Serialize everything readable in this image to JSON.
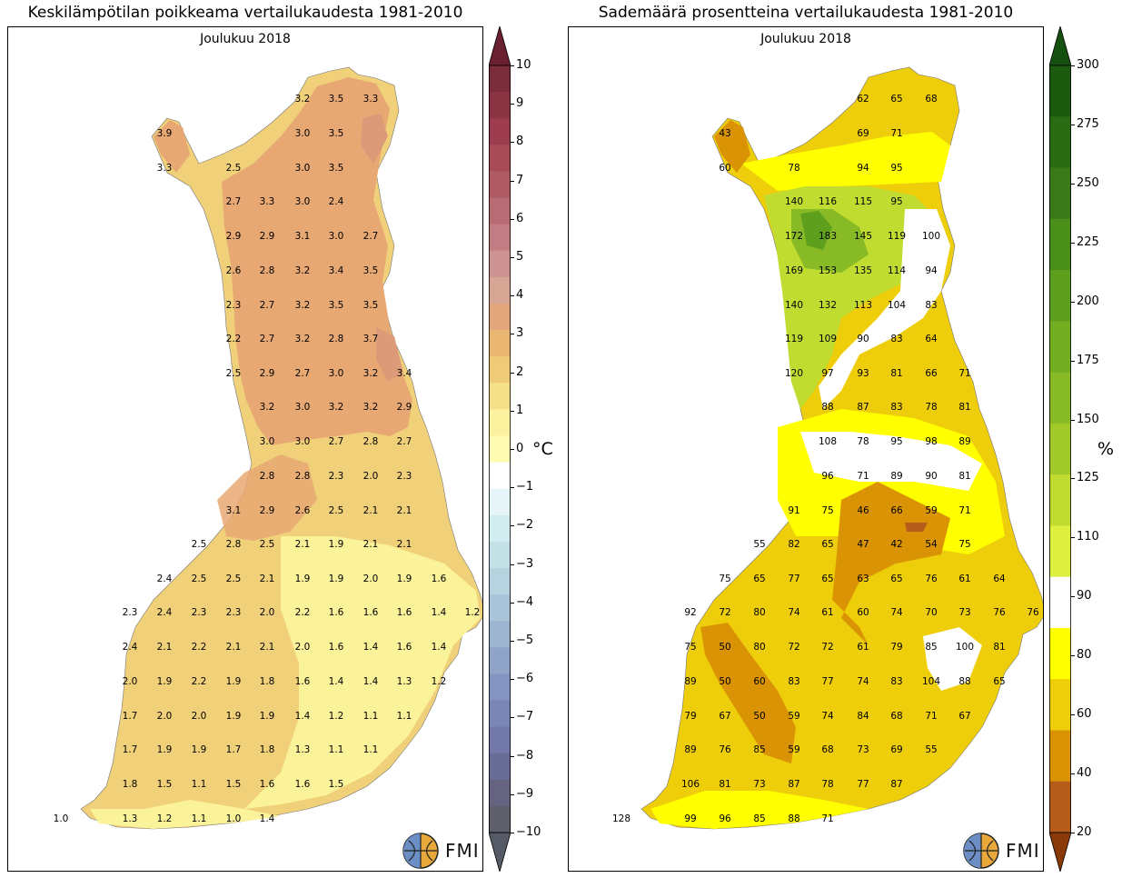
{
  "left": {
    "title": "Keskilämpötilan poikkeama vertailukaudesta 1981-2010",
    "subtitle": "Joulukuu 2018",
    "unit": "°C",
    "colorbar_ticks": [
      "10",
      "9",
      "8",
      "7",
      "6",
      "5",
      "4",
      "3",
      "2",
      "1",
      "0",
      "−1",
      "−2",
      "−3",
      "−4",
      "−5",
      "−6",
      "−7",
      "−8",
      "−9",
      "−10"
    ],
    "colorbar_colors": [
      "#7a2c3a",
      "#8a3444",
      "#9c3c4e",
      "#a84a58",
      "#b05a66",
      "#b86a75",
      "#c27d84",
      "#cd9292",
      "#d6a593",
      "#e3a57c",
      "#e9b772",
      "#efcb78",
      "#f5e08a",
      "#fbf19e",
      "#fffbb0",
      "#ffffff",
      "#e6f6f8",
      "#d3eef1",
      "#c3e1e7",
      "#b6d3df",
      "#a9c4d8",
      "#9db4d0",
      "#90a3c8",
      "#8594c0",
      "#7a87b6",
      "#7279a8",
      "#6a6c98",
      "#656380",
      "#60606c"
    ],
    "values": [
      [
        "3.2",
        "3.5",
        "3.3"
      ],
      [
        "3.9",
        "3.0",
        "3.5"
      ],
      [
        "3.3",
        "2.5",
        "3.0",
        "3.5"
      ],
      [
        "2.7",
        "3.3",
        "3.0",
        "2.4"
      ],
      [
        "2.9",
        "2.9",
        "3.1",
        "3.0",
        "2.7"
      ],
      [
        "2.6",
        "2.8",
        "3.2",
        "3.4",
        "3.5"
      ],
      [
        "2.3",
        "2.7",
        "3.2",
        "3.5",
        "3.5"
      ],
      [
        "2.2",
        "2.7",
        "3.2",
        "2.8",
        "3.7"
      ],
      [
        "2.5",
        "2.9",
        "2.7",
        "3.0",
        "3.2",
        "3.4"
      ],
      [
        "3.2",
        "3.0",
        "3.2",
        "3.2",
        "2.9"
      ],
      [
        "3.0",
        "3.0",
        "2.7",
        "2.8",
        "2.7"
      ],
      [
        "2.8",
        "2.8",
        "2.3",
        "2.0",
        "2.3"
      ],
      [
        "3.1",
        "2.9",
        "2.6",
        "2.5",
        "2.1",
        "2.1"
      ],
      [
        "2.5",
        "2.8",
        "2.5",
        "2.1",
        "1.9",
        "2.1",
        "2.1"
      ],
      [
        "2.4",
        "2.5",
        "2.5",
        "2.1",
        "1.9",
        "1.9",
        "2.0",
        "1.9",
        "1.6"
      ],
      [
        "2.3",
        "2.4",
        "2.3",
        "2.3",
        "2.0",
        "2.2",
        "1.6",
        "1.6",
        "1.6",
        "1.4",
        "1.2"
      ],
      [
        "2.4",
        "2.1",
        "2.2",
        "2.1",
        "2.1",
        "2.0",
        "1.6",
        "1.4",
        "1.6",
        "1.4"
      ],
      [
        "2.0",
        "1.9",
        "2.2",
        "1.9",
        "1.8",
        "1.6",
        "1.4",
        "1.4",
        "1.3",
        "1.2"
      ],
      [
        "1.7",
        "2.0",
        "2.0",
        "1.9",
        "1.9",
        "1.4",
        "1.2",
        "1.1",
        "1.1"
      ],
      [
        "1.7",
        "1.9",
        "1.9",
        "1.7",
        "1.8",
        "1.3",
        "1.1",
        "1.1"
      ],
      [
        "1.8",
        "1.5",
        "1.1",
        "1.5",
        "1.6",
        "1.6",
        "1.5"
      ],
      [
        "1.0",
        "1.3",
        "1.2",
        "1.1",
        "1.0",
        "1.4"
      ]
    ]
  },
  "right": {
    "title": "Sademäärä prosentteina vertailukaudesta 1981-2010",
    "subtitle": "Joulukuu 2018",
    "unit": "%",
    "colorbar_ticks": [
      "300",
      "275",
      "250",
      "225",
      "200",
      "175",
      "150",
      "125",
      "110",
      "90",
      "80",
      "60",
      "40",
      "20"
    ],
    "colorbar_colors": [
      "#1c5a10",
      "#2b6b14",
      "#3b7a18",
      "#4a8f1a",
      "#5ea01e",
      "#72ad22",
      "#88ba26",
      "#a2c92a",
      "#c0dc30",
      "#ddf040",
      "#ffffff",
      "#ffff00",
      "#eecd0a",
      "#d99305",
      "#b55c1a"
    ],
    "values": [
      [
        "62",
        "65",
        "68"
      ],
      [
        "43",
        "69",
        "71"
      ],
      [
        "60",
        "78",
        "94",
        "95"
      ],
      [
        "140",
        "116",
        "115",
        "95"
      ],
      [
        "172",
        "183",
        "145",
        "119",
        "100"
      ],
      [
        "169",
        "153",
        "135",
        "114",
        "94"
      ],
      [
        "140",
        "132",
        "113",
        "104",
        "83"
      ],
      [
        "119",
        "109",
        "90",
        "83",
        "64"
      ],
      [
        "120",
        "97",
        "93",
        "81",
        "66",
        "71"
      ],
      [
        "88",
        "87",
        "83",
        "78",
        "81"
      ],
      [
        "108",
        "78",
        "95",
        "98",
        "89"
      ],
      [
        "96",
        "71",
        "89",
        "90",
        "81"
      ],
      [
        "91",
        "75",
        "46",
        "66",
        "59",
        "71"
      ],
      [
        "55",
        "82",
        "65",
        "47",
        "42",
        "54",
        "75"
      ],
      [
        "75",
        "65",
        "77",
        "65",
        "63",
        "65",
        "76",
        "61",
        "64"
      ],
      [
        "92",
        "72",
        "80",
        "74",
        "61",
        "60",
        "74",
        "70",
        "73",
        "76",
        "76"
      ],
      [
        "75",
        "50",
        "80",
        "72",
        "72",
        "61",
        "79",
        "85",
        "100",
        "81"
      ],
      [
        "89",
        "50",
        "60",
        "83",
        "77",
        "74",
        "83",
        "104",
        "88",
        "65"
      ],
      [
        "79",
        "67",
        "50",
        "59",
        "74",
        "84",
        "68",
        "71",
        "67"
      ],
      [
        "89",
        "76",
        "85",
        "59",
        "68",
        "73",
        "69",
        "55"
      ],
      [
        "106",
        "81",
        "73",
        "87",
        "78",
        "77",
        "87"
      ],
      [
        "128",
        "99",
        "96",
        "85",
        "88",
        "71"
      ]
    ]
  },
  "logo": {
    "text": "FMI"
  }
}
